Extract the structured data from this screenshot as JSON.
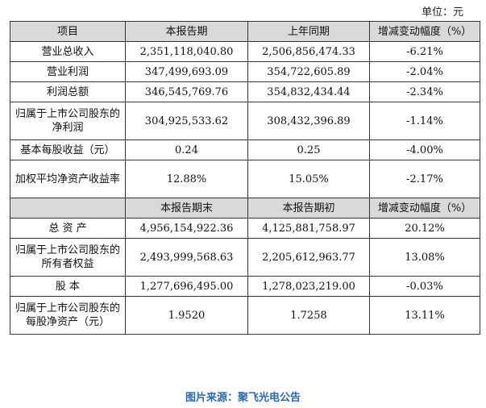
{
  "unit_label": "单位：元",
  "header1": [
    "项目",
    "本报告期",
    "上年同期",
    "增减变动幅度（%）"
  ],
  "rows1": [
    [
      "营业总收入",
      "2,351,118,040.80",
      "2,506,856,474.33",
      "-6.21%"
    ],
    [
      "营业利润",
      "347,499,693.09",
      "354,722,605.89",
      "-2.04%"
    ],
    [
      "利润总额",
      "346,545,769.76",
      "354,832,434.44",
      "-2.34%"
    ],
    [
      "归属于上市公司股东的净利润",
      "304,925,533.62",
      "308,432,396.89",
      "-1.14%"
    ],
    [
      "基本每股收益（元）",
      "0.24",
      "0.25",
      "-4.00%"
    ],
    [
      "加权平均净资产收益率",
      "12.88%",
      "15.05%",
      "-2.17%"
    ]
  ],
  "header2": [
    "",
    "本报告期末",
    "本报告期初",
    "增减变动幅度（%）"
  ],
  "rows2": [
    [
      "总 资 产",
      "4,956,154,922.36",
      "4,125,881,758.97",
      "20.12%"
    ],
    [
      "归属于上市公司股东的所有者权益",
      "2,493,999,568.63",
      "2,205,612,963.77",
      "13.08%"
    ],
    [
      "股 本",
      "1,277,696,495.00",
      "1,278,023,219.00",
      "-0.03%"
    ],
    [
      "归属于上市公司股东的每股净资产（元）",
      "1.9520",
      "1.7258",
      "13.11%"
    ]
  ],
  "source": "图片来源：聚飞光电公告"
}
